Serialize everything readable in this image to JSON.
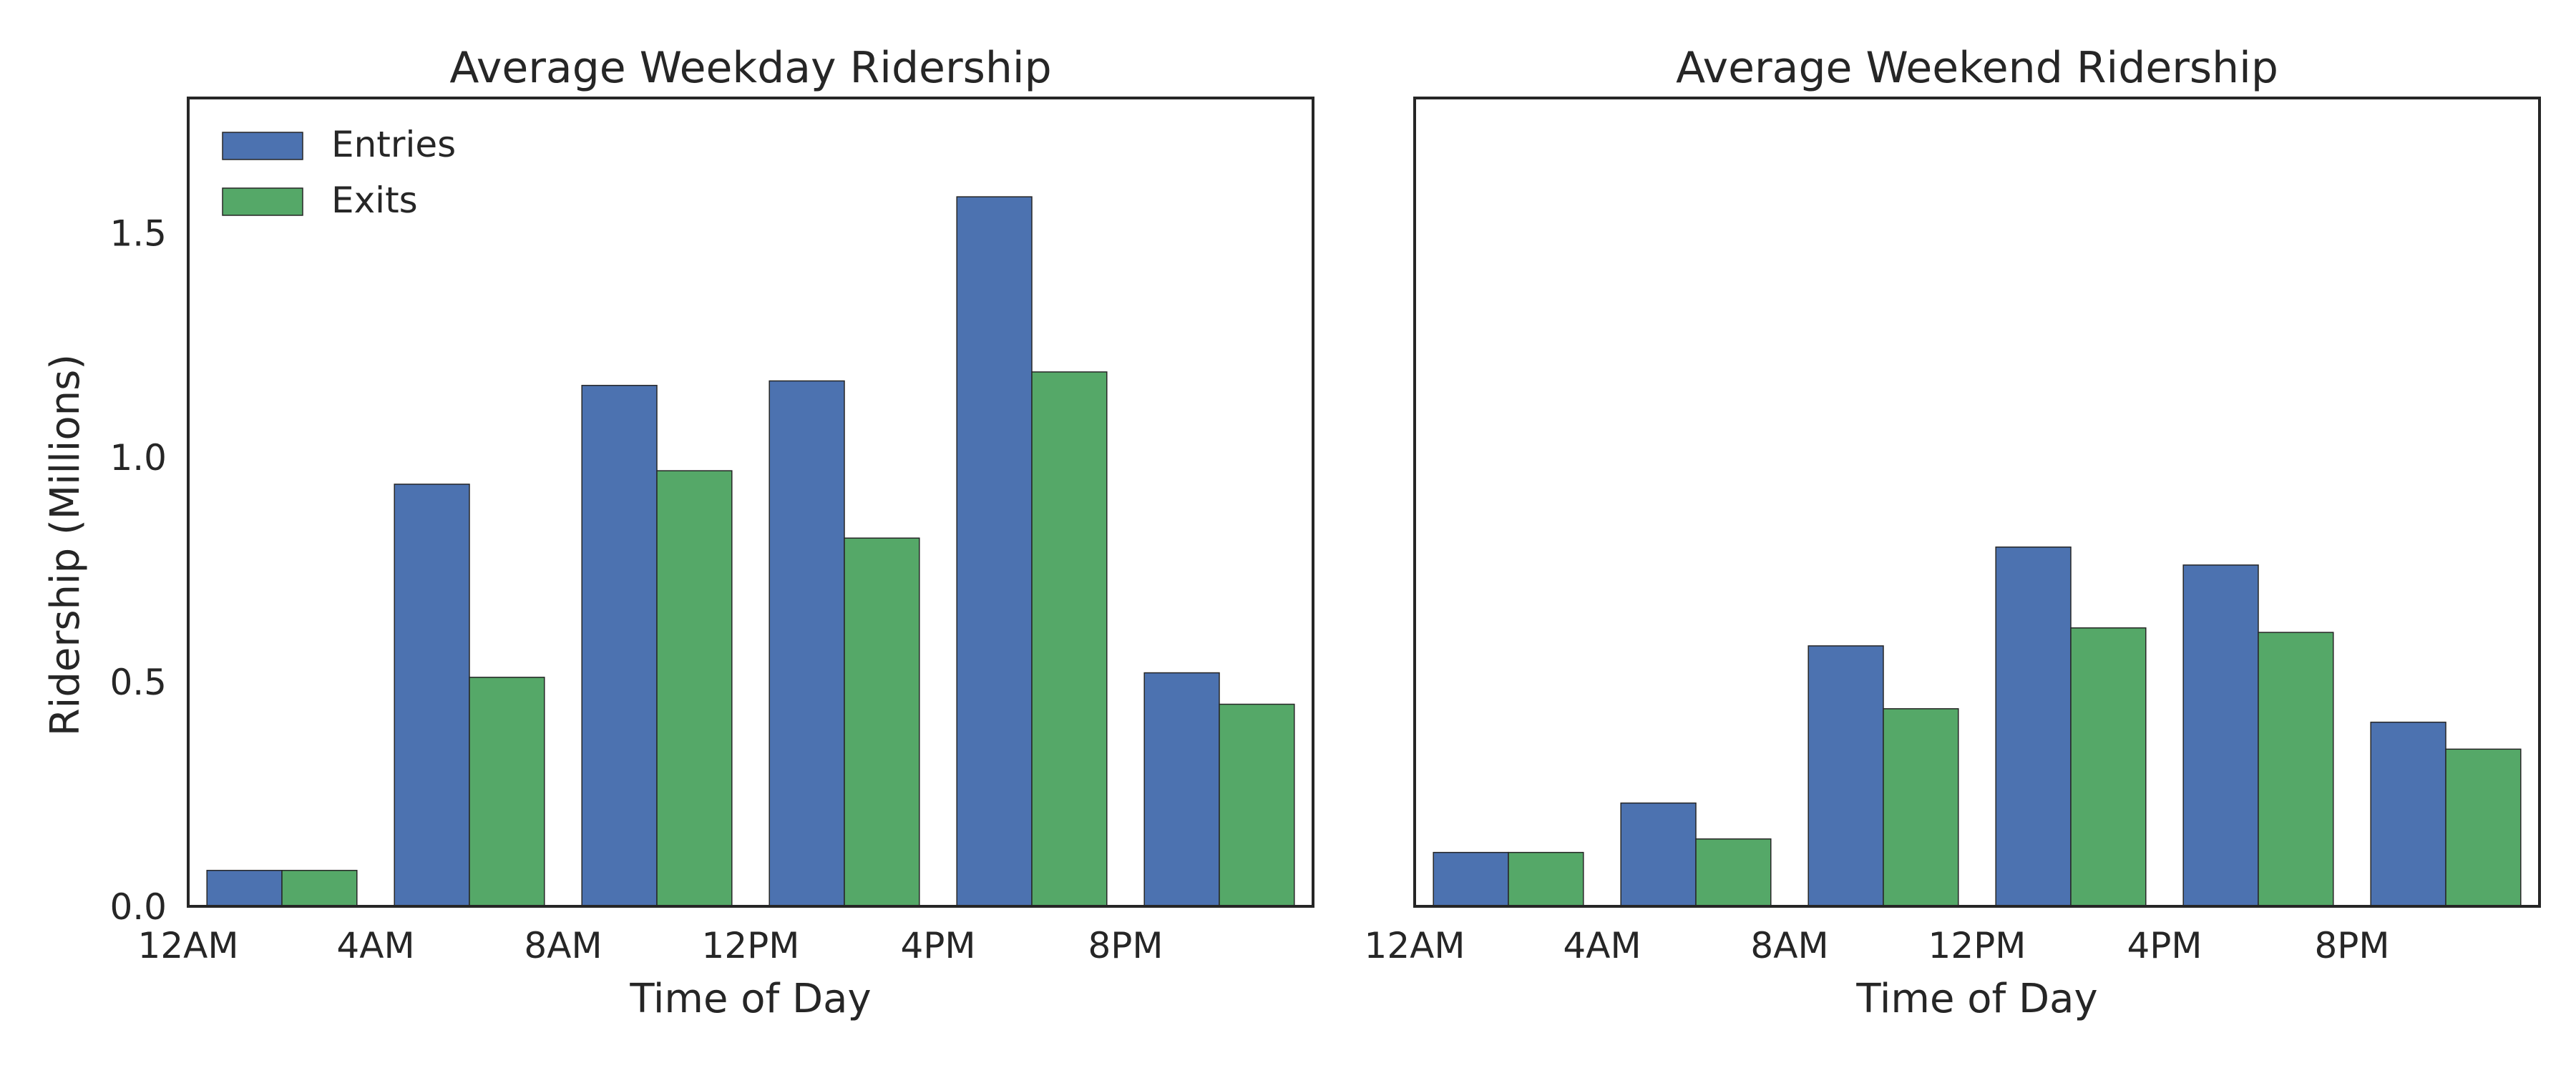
{
  "chart_data": [
    {
      "type": "bar",
      "title": "Average Weekday Ridership",
      "xlabel": "Time of Day",
      "ylabel": "Ridership (Millions)",
      "x_tick_labels": [
        "12AM",
        "4AM",
        "8AM",
        "12PM",
        "4PM",
        "8PM"
      ],
      "categories": [
        "12AM",
        "4AM",
        "8AM",
        "12PM",
        "4PM",
        "8PM"
      ],
      "ylim": [
        0,
        1.8
      ],
      "y_ticks": [
        0.0,
        0.5,
        1.0,
        1.5
      ],
      "y_tick_labels": [
        "0.0",
        "0.5",
        "1.0",
        "1.5"
      ],
      "grid": false,
      "legend": {
        "placement": "top-left"
      },
      "series": [
        {
          "name": "Entries",
          "color": "#4c72b0",
          "values": [
            0.08,
            0.94,
            1.16,
            1.17,
            1.58,
            0.52
          ]
        },
        {
          "name": "Exits",
          "color": "#55a868",
          "values": [
            0.08,
            0.51,
            0.97,
            0.82,
            1.19,
            0.45
          ]
        }
      ]
    },
    {
      "type": "bar",
      "title": "Average Weekend Ridership",
      "xlabel": "Time of Day",
      "ylabel": "",
      "x_tick_labels": [
        "12AM",
        "4AM",
        "8AM",
        "12PM",
        "4PM",
        "8PM"
      ],
      "categories": [
        "12AM",
        "4AM",
        "8AM",
        "12PM",
        "4PM",
        "8PM"
      ],
      "ylim": [
        0,
        1.8
      ],
      "y_ticks": [],
      "y_tick_labels": [],
      "grid": false,
      "legend": null,
      "series": [
        {
          "name": "Entries",
          "color": "#4c72b0",
          "values": [
            0.12,
            0.23,
            0.58,
            0.8,
            0.76,
            0.41
          ]
        },
        {
          "name": "Exits",
          "color": "#55a868",
          "values": [
            0.12,
            0.15,
            0.44,
            0.62,
            0.61,
            0.35
          ]
        }
      ]
    }
  ]
}
